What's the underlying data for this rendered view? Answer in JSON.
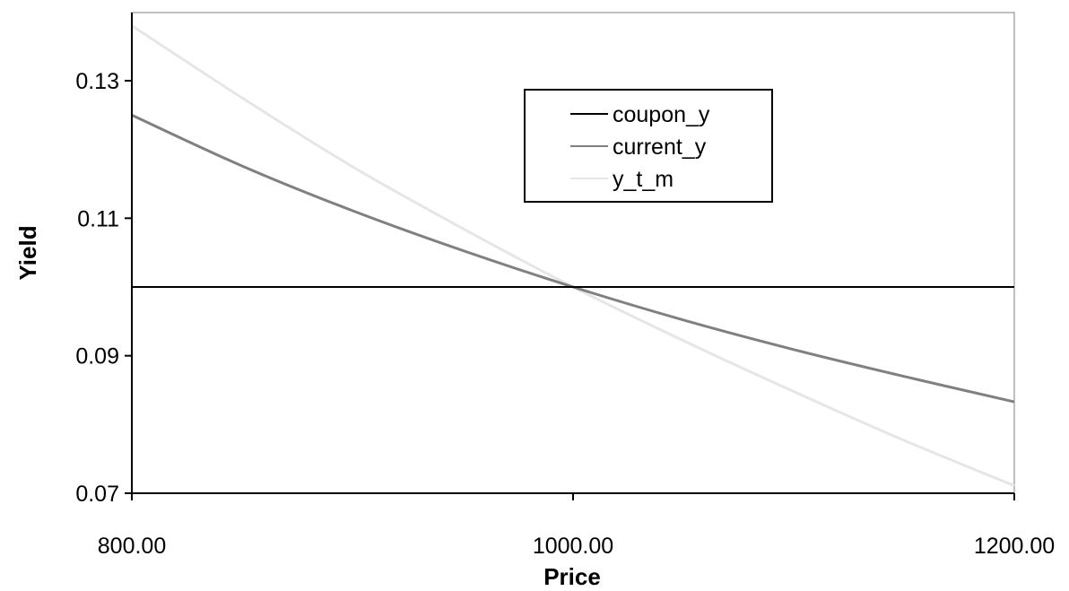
{
  "chart_data": {
    "type": "line",
    "title": "",
    "xlabel": "Price",
    "ylabel": "Yield",
    "xlim": [
      800,
      1200
    ],
    "ylim": [
      0.07,
      0.13
    ],
    "x_ticks": [
      800,
      1000,
      1200
    ],
    "x_tick_labels": [
      "800.00",
      "1000.00",
      "1200.00"
    ],
    "y_ticks": [
      0.07,
      0.09,
      0.11,
      0.13
    ],
    "y_tick_labels": [
      "0.07",
      "0.09",
      "0.11",
      "0.13"
    ],
    "grid": false,
    "legend_position": "top-center",
    "x": [
      800,
      850,
      900,
      950,
      1000,
      1050,
      1100,
      1150,
      1200
    ],
    "series": [
      {
        "name": "coupon_y",
        "color": "#000000",
        "values": [
          0.1,
          0.1,
          0.1,
          0.1,
          0.1,
          0.1,
          0.1,
          0.1,
          0.1
        ]
      },
      {
        "name": "current_y",
        "color": "#808080",
        "values": [
          0.125,
          0.1176,
          0.1111,
          0.1053,
          0.1,
          0.0952,
          0.0909,
          0.087,
          0.0833
        ]
      },
      {
        "name": "y_t_m",
        "color": "#e6e6e6",
        "values": [
          0.138,
          0.1275,
          0.1175,
          0.1085,
          0.1,
          0.0922,
          0.0848,
          0.0777,
          0.0711
        ]
      }
    ]
  }
}
